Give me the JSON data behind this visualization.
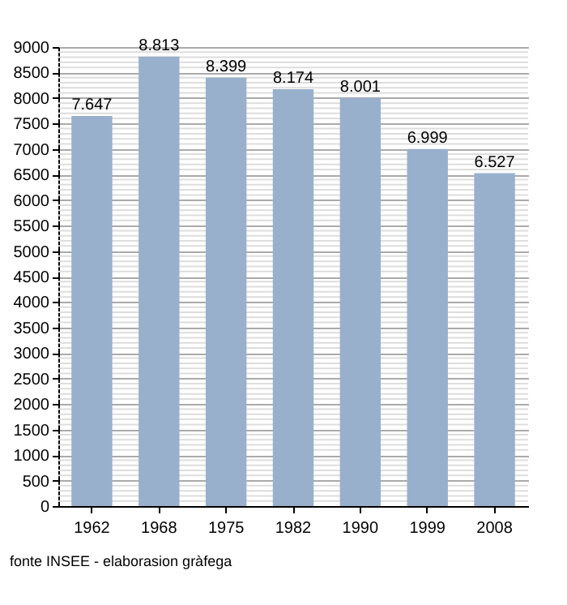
{
  "chart_data": {
    "type": "bar",
    "categories": [
      "1962",
      "1968",
      "1975",
      "1982",
      "1990",
      "1999",
      "2008"
    ],
    "values": [
      7647,
      8813,
      8399,
      8174,
      8001,
      6999,
      6527
    ],
    "value_labels": [
      "7.647",
      "8.813",
      "8.399",
      "8.174",
      "8.001",
      "6.999",
      "6.527"
    ],
    "color": "#98b0cc",
    "ylim": [
      0,
      9000
    ],
    "yticks": [
      0,
      500,
      1000,
      1500,
      2000,
      2500,
      3000,
      3500,
      4000,
      4500,
      5000,
      5500,
      6000,
      6500,
      7000,
      7500,
      8000,
      8500,
      9000
    ],
    "grid": true,
    "annotations": [
      "fonte INSEE - elaborasion gràfega"
    ]
  }
}
